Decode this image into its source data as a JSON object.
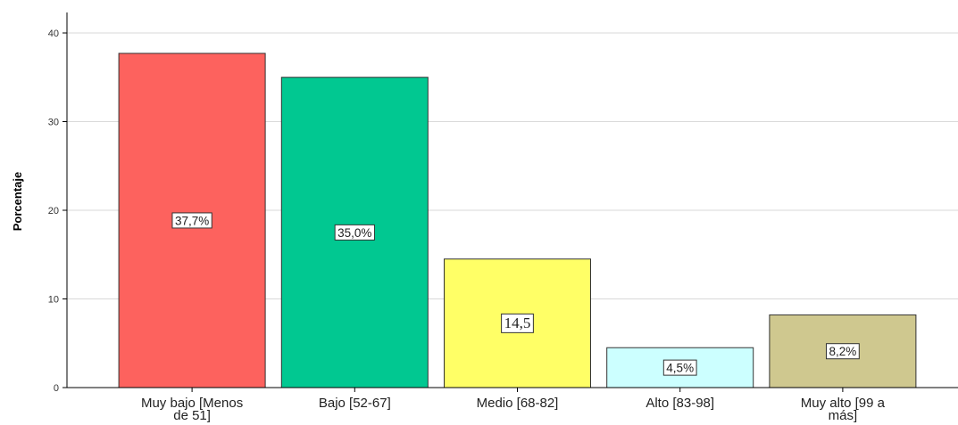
{
  "chart_data": {
    "type": "bar",
    "ylabel": "Porcentaje",
    "xlabel": "",
    "ylim": [
      0,
      42
    ],
    "yticks": [
      0,
      10,
      20,
      30,
      40
    ],
    "grid": true,
    "categories": [
      [
        "Muy bajo [Menos",
        "de 51]"
      ],
      [
        "Bajo [52-67]"
      ],
      [
        "Medio [68-82]"
      ],
      [
        "Alto [83-98]"
      ],
      [
        "Muy alto [99 a",
        "más]"
      ]
    ],
    "values": [
      37.7,
      35.0,
      14.5,
      4.5,
      8.2
    ],
    "data_labels": [
      "37,7%",
      "35,0%",
      "14,5",
      "4,5%",
      "8,2%"
    ],
    "colors": [
      "#fd625e",
      "#01c891",
      "#ffff66",
      "#ccffff",
      "#cfc88f"
    ]
  }
}
